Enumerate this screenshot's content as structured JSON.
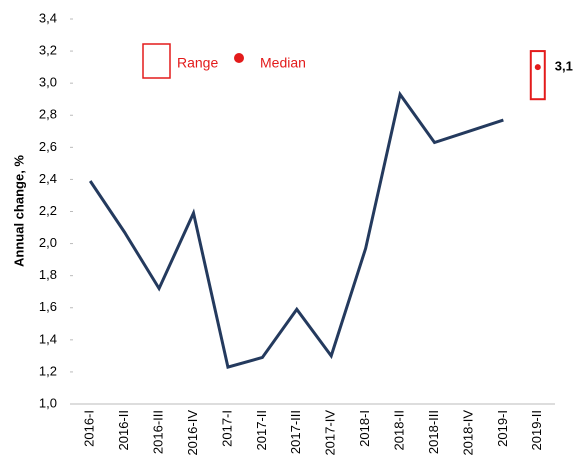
{
  "chart_data": {
    "type": "line",
    "y_label": "Annual change, %",
    "categories": [
      "2016-I",
      "2016-II",
      "2016-III",
      "2016-IV",
      "2017-I",
      "2017-II",
      "2017-III",
      "2017-IV",
      "2018-I",
      "2018-II",
      "2018-III",
      "2018-IV",
      "2019-I",
      "2019-II"
    ],
    "series": [
      {
        "name": null,
        "color": "#243a5e",
        "values": [
          2.39,
          2.07,
          1.72,
          2.19,
          1.23,
          1.29,
          1.59,
          1.3,
          1.97,
          2.93,
          2.63,
          2.7,
          2.77,
          null
        ]
      }
    ],
    "range": {
      "name": "Range",
      "color": "#e31b1b",
      "low": 2.9,
      "high": 3.2
    },
    "median": {
      "name": "Median",
      "color": "#e31b1b",
      "value": 3.1,
      "value_label": "3,1"
    },
    "ylim": [
      1.0,
      3.4
    ],
    "yticks": [
      {
        "value": 1.0,
        "label": "1,0"
      },
      {
        "value": 1.2,
        "label": "1,2"
      },
      {
        "value": 1.4,
        "label": "1,4"
      },
      {
        "value": 1.6,
        "label": "1,6"
      },
      {
        "value": 1.8,
        "label": "1,8"
      },
      {
        "value": 2.0,
        "label": "2,0"
      },
      {
        "value": 2.2,
        "label": "2,2"
      },
      {
        "value": 2.4,
        "label": "2,4"
      },
      {
        "value": 2.6,
        "label": "2,6"
      },
      {
        "value": 2.8,
        "label": "2,8"
      },
      {
        "value": 3.0,
        "label": "3,0"
      },
      {
        "value": 3.2,
        "label": "3,2"
      },
      {
        "value": 3.4,
        "label": "3,4"
      }
    ],
    "grid": false
  }
}
